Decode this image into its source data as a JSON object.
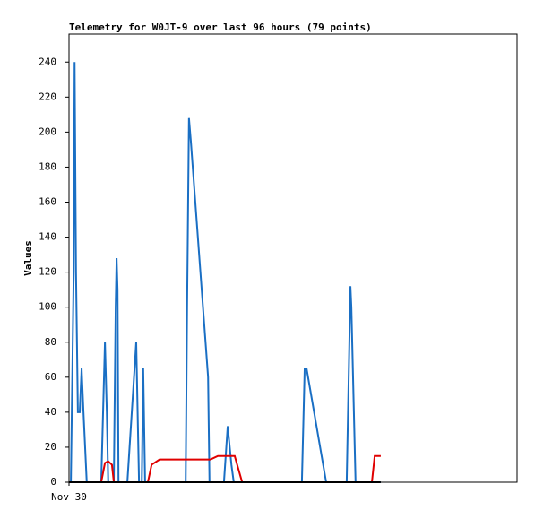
{
  "chart_data": {
    "type": "line",
    "title": "Telemetry for W0JT-9 over last 96 hours (79 points)",
    "y_label": "Values",
    "xlim": [
      0,
      96
    ],
    "xticks": [
      {
        "value": 0,
        "label": "Nov 30"
      }
    ],
    "ylim": [
      0,
      256
    ],
    "yticks": [
      0,
      20,
      40,
      60,
      80,
      100,
      120,
      140,
      160,
      180,
      200,
      220,
      240
    ],
    "series": [
      {
        "color": "#1a6fc4",
        "x": [
          0.2,
          0.4,
          1.0,
          1.2,
          1.3,
          1.5,
          1.9,
          2.3,
          2.7,
          3.1,
          3.8,
          6.9,
          7.7,
          8.1,
          8.4,
          9.6,
          10.0,
          10.2,
          10.4,
          10.6,
          12.5,
          14.4,
          15.0,
          15.6,
          15.9,
          16.3,
          25.0,
          25.3,
          25.7,
          26.1,
          29.8,
          30.1,
          33.2,
          34.0,
          34.8,
          35.3,
          49.9,
          50.5,
          50.9,
          55.1,
          59.5,
          60.3,
          60.5,
          61.4,
          66.8
        ],
        "values": [
          0,
          0,
          120,
          240,
          200,
          120,
          40,
          40,
          65,
          40,
          0,
          0,
          80,
          40,
          0,
          0,
          100,
          128,
          110,
          0,
          0,
          80,
          0,
          0,
          65,
          0,
          0,
          100,
          208,
          195,
          60,
          0,
          0,
          32,
          10,
          0,
          0,
          65,
          65,
          0,
          0,
          112,
          100,
          0,
          0
        ]
      },
      {
        "color": "#e00000",
        "x": [
          6.9,
          7.7,
          8.4,
          9.2,
          9.6,
          16.9,
          17.7,
          19.4,
          30.3,
          31.9,
          35.5,
          37.1,
          64.9,
          65.5,
          66.8
        ],
        "values": [
          0,
          11,
          12,
          10,
          0,
          0,
          10,
          13,
          13,
          15,
          15,
          0,
          0,
          15,
          15
        ]
      },
      {
        "color": "#000000",
        "x": [
          0,
          66.8
        ],
        "values": [
          0,
          0
        ]
      }
    ]
  }
}
